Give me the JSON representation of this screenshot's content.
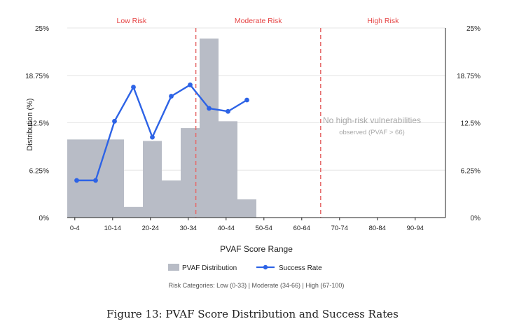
{
  "chart_data": {
    "type": "bar",
    "ylabel": "Distribution (%)",
    "xlabel": "PVAF Score Range",
    "ylim": [
      0,
      25
    ],
    "y_ticks": [
      "0%",
      "6.25%",
      "12.5%",
      "18.75%",
      "25%"
    ],
    "y_tick_values": [
      0,
      6.25,
      12.5,
      18.75,
      25
    ],
    "x_ticks": [
      "0-4",
      "10-14",
      "20-24",
      "30-34",
      "40-44",
      "50-54",
      "60-64",
      "70-74",
      "80-84",
      "90-94"
    ],
    "x_domain": [
      0,
      100
    ],
    "x_tick_values": [
      2,
      12,
      22,
      32,
      42,
      52,
      62,
      72,
      82,
      92
    ],
    "bins": [
      {
        "range": [
          0,
          15
        ],
        "value": 10.3
      },
      {
        "range": [
          15,
          20
        ],
        "value": 1.4
      },
      {
        "range": [
          20,
          25
        ],
        "value": 10.1
      },
      {
        "range": [
          25,
          30
        ],
        "value": 4.9
      },
      {
        "range": [
          30,
          35
        ],
        "value": 11.8
      },
      {
        "range": [
          35,
          40
        ],
        "value": 23.6
      },
      {
        "range": [
          40,
          45
        ],
        "value": 12.7
      },
      {
        "range": [
          45,
          50
        ],
        "value": 2.4
      }
    ],
    "series": [
      {
        "name": "Success Rate",
        "color": "#2d63e6",
        "points": [
          {
            "x": 2.5,
            "y": 4.9
          },
          {
            "x": 7.5,
            "y": 4.9
          },
          {
            "x": 12.5,
            "y": 12.7
          },
          {
            "x": 17.5,
            "y": 17.2
          },
          {
            "x": 22.5,
            "y": 10.6
          },
          {
            "x": 27.5,
            "y": 16.0
          },
          {
            "x": 32.5,
            "y": 17.5
          },
          {
            "x": 37.5,
            "y": 14.4
          },
          {
            "x": 42.5,
            "y": 14.0
          },
          {
            "x": 47.5,
            "y": 15.5
          }
        ]
      }
    ],
    "thresholds": [
      34,
      67
    ],
    "regions": [
      {
        "label": "Low Risk",
        "range": [
          0,
          34
        ]
      },
      {
        "label": "Moderate Risk",
        "range": [
          34,
          67
        ]
      },
      {
        "label": "High Risk",
        "range": [
          67,
          100
        ]
      }
    ],
    "annotation_line1": "No high-risk vulnerabilities",
    "annotation_line2": "observed (PVAF > 66)",
    "legend": [
      "PVAF Distribution",
      "Success Rate"
    ],
    "footnote": "Risk Categories: Low (0-33) | Moderate (34-66) | High (67-100)",
    "colors": {
      "bar": "#b8bcc6",
      "line": "#2d63e6",
      "risk_label": "#e64545",
      "threshold": "#e56a6a"
    }
  },
  "figure_caption": "Figure 13: PVAF Score Distribution and Success Rates"
}
